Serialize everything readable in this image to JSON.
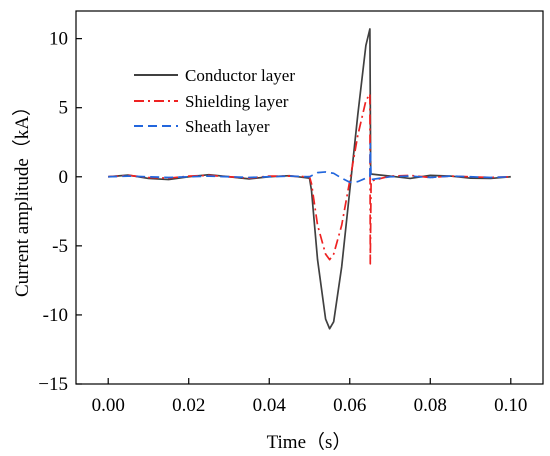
{
  "chart_data": {
    "type": "line",
    "title": "",
    "xlabel": "Time（s）",
    "ylabel": "Current amplitude（kA）",
    "xlim": [
      -0.008,
      0.108
    ],
    "ylim": [
      -15,
      12
    ],
    "xticks": [
      0.0,
      0.02,
      0.04,
      0.06,
      0.08,
      0.1
    ],
    "xtick_labels": [
      "0.00",
      "0.02",
      "0.04",
      "0.06",
      "0.08",
      "0.10"
    ],
    "yticks": [
      -15,
      -10,
      -5,
      0,
      5,
      10
    ],
    "ytick_labels": [
      "−15",
      "-10",
      "-5",
      "0",
      "5",
      "10"
    ],
    "grid": false,
    "legend_position": "top-left",
    "series": [
      {
        "name": "Conductor layer",
        "color": "#404040",
        "dash": "solid",
        "x": [
          0.0,
          0.005,
          0.01,
          0.015,
          0.02,
          0.025,
          0.03,
          0.035,
          0.04,
          0.045,
          0.05,
          0.0505,
          0.052,
          0.054,
          0.055,
          0.056,
          0.058,
          0.06,
          0.062,
          0.064,
          0.065,
          0.0652,
          0.07,
          0.075,
          0.08,
          0.085,
          0.09,
          0.095,
          0.1
        ],
        "y": [
          0.0,
          0.12,
          -0.12,
          -0.2,
          0.0,
          0.15,
          0.0,
          -0.15,
          0.0,
          0.08,
          -0.1,
          -1.0,
          -6.0,
          -10.3,
          -11.0,
          -10.5,
          -6.5,
          -1.0,
          4.5,
          9.5,
          10.7,
          0.2,
          0.05,
          -0.12,
          0.1,
          0.05,
          -0.1,
          -0.12,
          0.0
        ]
      },
      {
        "name": "Shielding layer",
        "color": "#ee2222",
        "dash": "dashdot",
        "x": [
          0.0,
          0.005,
          0.01,
          0.015,
          0.02,
          0.025,
          0.03,
          0.035,
          0.04,
          0.045,
          0.05,
          0.0505,
          0.052,
          0.054,
          0.055,
          0.056,
          0.058,
          0.06,
          0.062,
          0.064,
          0.065,
          0.0651,
          0.0653,
          0.07,
          0.075,
          0.08,
          0.085,
          0.09,
          0.095,
          0.1
        ],
        "y": [
          0.0,
          0.1,
          -0.05,
          -0.1,
          0.05,
          0.1,
          0.0,
          -0.1,
          0.05,
          0.05,
          0.0,
          -0.5,
          -3.5,
          -5.6,
          -6.0,
          -5.6,
          -3.5,
          -0.3,
          3.0,
          5.5,
          6.0,
          -6.3,
          -0.3,
          0.05,
          0.1,
          -0.05,
          0.05,
          0.0,
          -0.05,
          0.0
        ]
      },
      {
        "name": "Sheath layer",
        "color": "#2266dd",
        "dash": "dashed",
        "x": [
          0.0,
          0.005,
          0.01,
          0.015,
          0.02,
          0.025,
          0.03,
          0.035,
          0.04,
          0.045,
          0.05,
          0.052,
          0.054,
          0.056,
          0.058,
          0.06,
          0.062,
          0.064,
          0.065,
          0.0651,
          0.0653,
          0.07,
          0.075,
          0.08,
          0.085,
          0.09,
          0.095,
          0.1
        ],
        "y": [
          0.0,
          0.05,
          0.0,
          -0.05,
          0.0,
          0.05,
          0.0,
          -0.05,
          0.0,
          0.05,
          0.0,
          0.3,
          0.35,
          0.25,
          -0.1,
          -0.4,
          -0.35,
          -0.1,
          0.0,
          2.4,
          -0.2,
          0.0,
          0.05,
          -0.05,
          0.05,
          0.0,
          -0.05,
          0.0
        ]
      }
    ]
  }
}
